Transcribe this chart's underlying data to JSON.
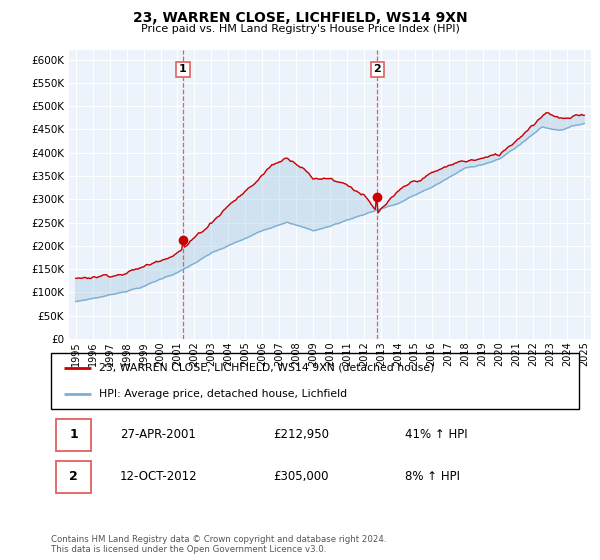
{
  "title": "23, WARREN CLOSE, LICHFIELD, WS14 9XN",
  "subtitle": "Price paid vs. HM Land Registry's House Price Index (HPI)",
  "ylim": [
    0,
    620000
  ],
  "yticks": [
    0,
    50000,
    100000,
    150000,
    200000,
    250000,
    300000,
    350000,
    400000,
    450000,
    500000,
    550000,
    600000
  ],
  "hpi_color": "#7bafd4",
  "price_color": "#cc0000",
  "purchase1_date": 2001.32,
  "purchase1_price": 212950,
  "purchase2_date": 2012.79,
  "purchase2_price": 305000,
  "vline_color": "#e06060",
  "background_color": "#edf3fa",
  "legend_label1": "23, WARREN CLOSE, LICHFIELD, WS14 9XN (detached house)",
  "legend_label2": "HPI: Average price, detached house, Lichfield",
  "annotation1_date": "27-APR-2001",
  "annotation1_price": "£212,950",
  "annotation1_hpi": "41% ↑ HPI",
  "annotation2_date": "12-OCT-2012",
  "annotation2_price": "£305,000",
  "annotation2_hpi": "8% ↑ HPI",
  "footer": "Contains HM Land Registry data © Crown copyright and database right 2024.\nThis data is licensed under the Open Government Licence v3.0."
}
